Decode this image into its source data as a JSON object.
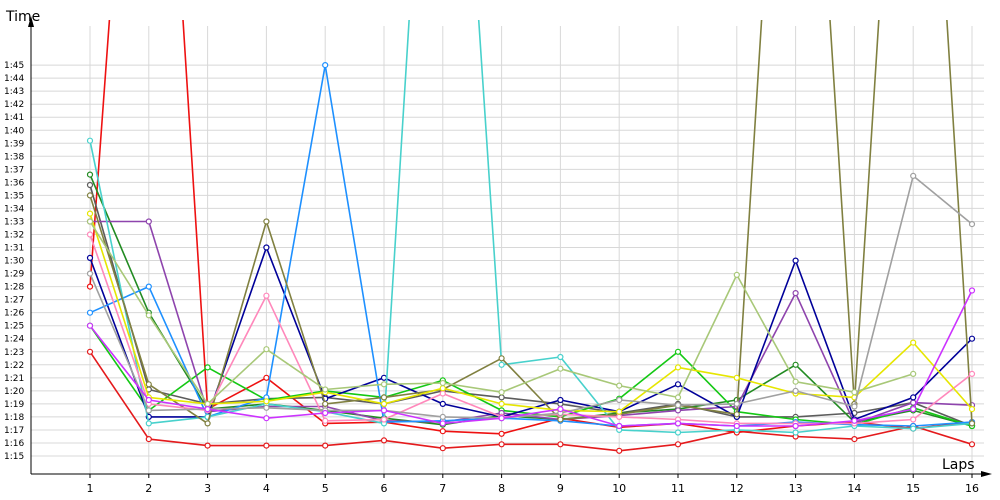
{
  "chart_data": {
    "type": "line",
    "ylabel": "Time",
    "xlabel": "Laps",
    "x": [
      1,
      2,
      3,
      4,
      5,
      6,
      7,
      8,
      9,
      10,
      11,
      12,
      13,
      14,
      15,
      16
    ],
    "y_ticks": [
      "1:15",
      "1:16",
      "1:17",
      "1:18",
      "1:19",
      "1:20",
      "1:21",
      "1:22",
      "1:23",
      "1:24",
      "1:25",
      "1:26",
      "1:27",
      "1:28",
      "1:29",
      "1:30",
      "1:31",
      "1:32",
      "1:33",
      "1:34",
      "1:35",
      "1:36",
      "1:37",
      "1:38",
      "1:39",
      "1:40",
      "1:41",
      "1:42",
      "1:43",
      "1:44",
      "1:45"
    ],
    "y_unit": "seconds",
    "ylim_seconds": [
      74,
      108
    ],
    "grid": true,
    "legend": "none",
    "series": [
      {
        "color": "#e41a1c",
        "values": [
          83,
          76.3,
          75.8,
          75.8,
          75.8,
          76.2,
          75.6,
          75.9,
          75.9,
          75.4,
          75.9,
          76.9,
          76.5,
          76.3,
          77.3,
          75.9
        ]
      },
      {
        "color": "#ee1111",
        "values": [
          88,
          150,
          78.6,
          81,
          77.5,
          77.6,
          76.9,
          76.7,
          77.9,
          77.2,
          77.5,
          76.8,
          77.3,
          77.6,
          77.1,
          77.6
        ]
      },
      {
        "color": "#5c5c5c",
        "values": [
          95.8,
          80.1,
          79,
          79.4,
          79.5,
          79,
          80,
          79.5,
          79,
          78.3,
          79,
          78,
          78,
          78.3,
          79.1,
          77.3
        ]
      },
      {
        "color": "#228b22",
        "values": [
          96.6,
          86,
          78.6,
          79,
          78.5,
          77.9,
          77.4,
          78.1,
          77.8,
          78.3,
          78.6,
          79.3,
          82,
          77.6,
          78.5,
          77.3
        ]
      },
      {
        "color": "#14c814",
        "values": [
          85,
          78.5,
          81.8,
          79.3,
          80,
          79.5,
          80.8,
          78.5,
          78,
          79.4,
          83,
          78.4,
          77.8,
          77.4,
          78.7,
          77.3
        ]
      },
      {
        "color": "#8e44ad",
        "values": [
          93,
          93,
          78.4,
          78.8,
          78.8,
          77.7,
          77.6,
          78.3,
          77.8,
          78.1,
          78.5,
          78.8,
          87.5,
          77.5,
          79.1,
          78.9
        ]
      },
      {
        "color": "#000099",
        "values": [
          90.2,
          78,
          78,
          91,
          79.4,
          81,
          79,
          78,
          79.3,
          78.4,
          80.5,
          78,
          90,
          77.8,
          79.5,
          84
        ]
      },
      {
        "color": "#1e90ff",
        "values": [
          86,
          88,
          78,
          79.5,
          105,
          77.6,
          77.7,
          77.9,
          77.7,
          77.3,
          77.5,
          77.3,
          77.6,
          77.4,
          77.3,
          77.6
        ]
      },
      {
        "color": "#48d1cc",
        "values": [
          99.2,
          77.5,
          78,
          79,
          78.4,
          77.5,
          150,
          82,
          82.6,
          77,
          76.8,
          77,
          76.8,
          77.3,
          77.1,
          77.5
        ]
      },
      {
        "color": "#808040",
        "values": [
          95,
          80.5,
          77.5,
          93,
          79,
          79.5,
          80.1,
          82.5,
          77.8,
          78.2,
          78.9,
          78.2,
          150,
          79,
          150,
          77.5
        ]
      },
      {
        "color": "#ff88bb",
        "values": [
          92,
          79,
          78.5,
          87.3,
          77.7,
          77.8,
          79.8,
          78,
          78.2,
          78,
          77.8,
          77.5,
          77.5,
          77.5,
          77.8,
          81.3
        ]
      },
      {
        "color": "#e6e600",
        "values": [
          93.6,
          79.5,
          79,
          79.2,
          79.9,
          79,
          80.2,
          79,
          78.5,
          78.4,
          81.8,
          81,
          79.8,
          79.5,
          83.7,
          78.6
        ]
      },
      {
        "color": "#a8c878",
        "values": [
          93,
          85.8,
          79,
          83.2,
          80.1,
          80.5,
          80.6,
          79.9,
          81.7,
          80.4,
          79.5,
          88.9,
          80.7,
          79.9,
          81.3,
          0
        ]
      },
      {
        "color": "#a0a0a0",
        "values": [
          89,
          78.5,
          78.6,
          78.7,
          78.5,
          78.5,
          78,
          77.9,
          78.3,
          79.3,
          78.9,
          79,
          80,
          78.8,
          96.5,
          92.8
        ]
      },
      {
        "color": "#cc33ff",
        "values": [
          85,
          79.3,
          78.6,
          77.9,
          78.3,
          78.5,
          77.5,
          77.9,
          78.6,
          77.3,
          77.5,
          77.3,
          77.3,
          77.7,
          78.6,
          87.7
        ]
      }
    ]
  }
}
